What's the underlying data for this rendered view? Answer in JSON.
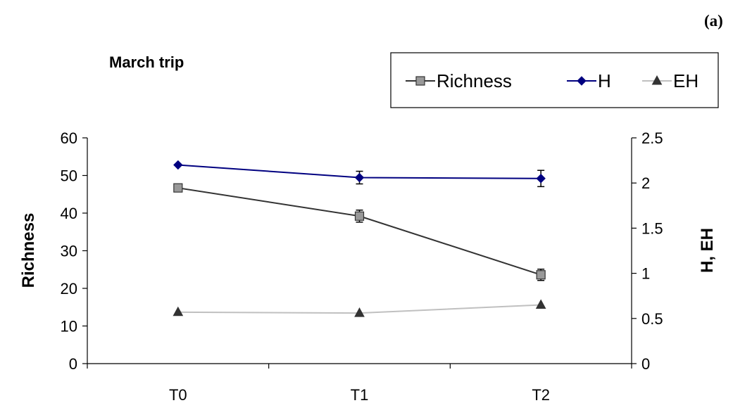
{
  "panel_label": "(a)",
  "chart_data": {
    "type": "line",
    "title": "March trip",
    "categories": [
      "T0",
      "T1",
      "T2"
    ],
    "y_left": {
      "label": "Richness",
      "ylim": [
        0,
        60
      ],
      "ticks": [
        "0",
        "10",
        "20",
        "30",
        "40",
        "50",
        "60"
      ]
    },
    "y_right": {
      "label": "H, EH",
      "ylim": [
        0,
        2.5
      ],
      "ticks": [
        "0",
        "0.5",
        "1",
        "1.5",
        "2",
        "2.5"
      ]
    },
    "legend_position": "top-right",
    "grid": false,
    "series": [
      {
        "name": "Richness",
        "axis": "left",
        "marker": "square",
        "color": "#333333",
        "marker_color": "#999999",
        "values": [
          46.7,
          39.2,
          23.6
        ],
        "errors": [
          0,
          1.6,
          1.5
        ]
      },
      {
        "name": "H",
        "axis": "right",
        "marker": "diamond",
        "color": "#000080",
        "values": [
          2.2,
          2.06,
          2.05
        ],
        "errors": [
          0,
          0.07,
          0.09
        ]
      },
      {
        "name": "EH",
        "axis": "right",
        "marker": "triangle",
        "color": "#C0C0C0",
        "marker_color": "#333333",
        "values": [
          0.57,
          0.56,
          0.65
        ],
        "errors": [
          0,
          0,
          0
        ]
      }
    ]
  }
}
